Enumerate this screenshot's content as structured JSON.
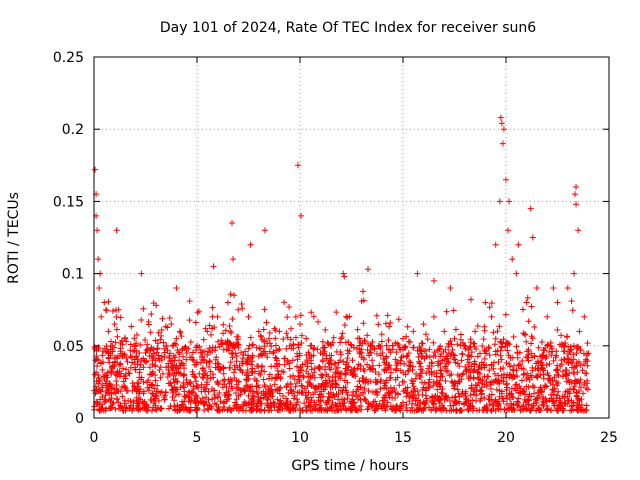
{
  "chart_data": {
    "type": "scatter",
    "title": "Day 101 of 2024, Rate Of TEC Index for receiver sun6",
    "xlabel": "GPS time / hours",
    "ylabel": "ROTI / TECUs",
    "xlim": [
      0,
      25
    ],
    "ylim": [
      0,
      0.25
    ],
    "xticks": [
      0,
      5,
      10,
      15,
      20,
      25
    ],
    "yticks": [
      0,
      0.05,
      0.1,
      0.15,
      0.2,
      0.25
    ],
    "xtick_labels": [
      "0",
      "5",
      "10",
      "15",
      "20",
      "25"
    ],
    "ytick_labels": [
      "0",
      "0.05",
      "0.1",
      "0.15",
      "0.2",
      "0.25"
    ],
    "grid": true,
    "marker": "+",
    "marker_color": "#ff0000",
    "series": [
      {
        "name": "ROTI",
        "x": [
          0.05,
          0.1,
          0.15,
          0.2,
          0.25,
          0.35,
          0.5,
          0.7,
          1.0,
          1.2,
          1.5,
          2.0,
          2.5,
          3.0,
          3.5,
          4.0,
          4.5,
          5.0,
          5.5,
          6.0,
          6.5,
          6.8,
          7.0,
          7.5,
          8.0,
          8.5,
          9.0,
          9.5,
          9.8,
          10.0,
          10.3,
          10.5,
          11.0,
          11.5,
          12.0,
          12.5,
          13.0,
          13.5,
          14.0,
          14.5,
          15.0,
          15.5,
          16.0,
          16.5,
          17.0,
          17.5,
          18.0,
          18.5,
          19.0,
          19.5,
          19.7,
          19.9,
          20.1,
          20.3,
          20.5,
          21.0,
          21.5,
          22.0,
          22.5,
          23.0,
          23.3,
          23.5,
          23.8,
          0.1,
          0.3,
          1.1,
          2.3,
          4.0,
          5.8,
          6.7,
          8.3,
          9.9,
          12.1,
          13.3,
          15.7,
          17.3,
          18.3,
          19.3,
          20.0,
          20.6,
          21.2,
          22.3,
          23.4,
          0.05,
          0.2,
          0.12,
          1.05,
          2.4,
          5.9,
          6.75,
          7.6,
          10.05,
          12.15,
          16.5,
          19.75,
          19.8,
          19.85,
          20.15,
          21.3,
          23.35,
          23.4
        ],
        "y": [
          0.172,
          0.155,
          0.13,
          0.11,
          0.09,
          0.07,
          0.08,
          0.06,
          0.065,
          0.075,
          0.055,
          0.05,
          0.045,
          0.04,
          0.05,
          0.055,
          0.045,
          0.05,
          0.06,
          0.07,
          0.08,
          0.085,
          0.075,
          0.07,
          0.06,
          0.055,
          0.06,
          0.05,
          0.07,
          0.065,
          0.055,
          0.05,
          0.045,
          0.05,
          0.055,
          0.05,
          0.045,
          0.04,
          0.045,
          0.05,
          0.055,
          0.06,
          0.065,
          0.07,
          0.06,
          0.055,
          0.05,
          0.06,
          0.08,
          0.12,
          0.15,
          0.2,
          0.13,
          0.11,
          0.1,
          0.08,
          0.09,
          0.07,
          0.08,
          0.09,
          0.1,
          0.13,
          0.07,
          0.14,
          0.1,
          0.13,
          0.1,
          0.09,
          0.105,
          0.135,
          0.13,
          0.175,
          0.1,
          0.103,
          0.1,
          0.09,
          0.082,
          0.07,
          0.165,
          0.12,
          0.145,
          0.09,
          0.16,
          0.03,
          0.04,
          0.02,
          0.03,
          0.025,
          0.035,
          0.11,
          0.12,
          0.14,
          0.098,
          0.095,
          0.208,
          0.204,
          0.19,
          0.15,
          0.125,
          0.155,
          0.148
        ]
      }
    ],
    "baseline_band": {
      "x_range": [
        0,
        24
      ],
      "y_low": 0.005,
      "y_high": 0.035,
      "description_values_only": "dense ROTI values between 0.005 and 0.035 over the full day"
    }
  }
}
